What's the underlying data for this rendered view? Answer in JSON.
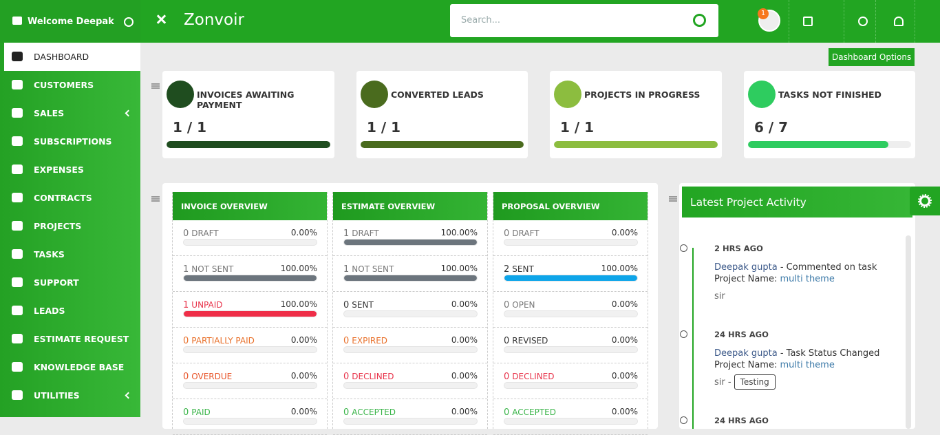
{
  "sidebar": {
    "welcome": "Welcome Deepak",
    "menu": [
      "DASHBOARD",
      "CUSTOMERS",
      "SALES",
      "SUBSCRIPTIONS",
      "EXPENSES",
      "CONTRACTS",
      "PROJECTS",
      "TASKS",
      "SUPPORT",
      "LEADS",
      "ESTIMATE REQUEST",
      "KNOWLEDGE BASE",
      "UTILITIES"
    ]
  },
  "header": {
    "brand": "Zonvoir",
    "search_placeholder": "Search...",
    "notification_count": 1
  },
  "dashboard_options": "Dashboard Options",
  "stats": [
    {
      "title": "INVOICES AWAITING PAYMENT",
      "value": "1 / 1",
      "progress": 100,
      "color": "#1f4d1f"
    },
    {
      "title": "CONVERTED LEADS",
      "value": "1 / 1",
      "progress": 100,
      "color": "#4a6b1e"
    },
    {
      "title": "PROJECTS IN PROGRESS",
      "value": "1 / 1",
      "progress": 100,
      "color": "#8cbd3f"
    },
    {
      "title": "TASKS NOT FINISHED",
      "value": "6 / 7",
      "progress": 86,
      "color": "#2ecc5f"
    }
  ],
  "overviews": [
    {
      "title": "INVOICE OVERVIEW",
      "rows": [
        {
          "count": 0,
          "label": "DRAFT",
          "percent": 0,
          "percent_label": "0.00%",
          "color": "#777777",
          "bar_color": "#6c757d"
        },
        {
          "count": 1,
          "label": "NOT SENT",
          "percent": 100,
          "percent_label": "100.00%",
          "color": "#777777",
          "bar_color": "#6c757d"
        },
        {
          "count": 1,
          "label": "UNPAID",
          "percent": 100,
          "percent_label": "100.00%",
          "color": "#e8334a",
          "bar_color": "#ef2e48"
        },
        {
          "count": 0,
          "label": "PARTIALLY PAID",
          "percent": 0,
          "percent_label": "0.00%",
          "color": "#e8702a",
          "bar_color": "#e8702a"
        },
        {
          "count": 0,
          "label": "OVERDUE",
          "percent": 0,
          "percent_label": "0.00%",
          "color": "#e8552a",
          "bar_color": "#e8552a"
        },
        {
          "count": 0,
          "label": "PAID",
          "percent": 0,
          "percent_label": "0.00%",
          "color": "#3bb54a",
          "bar_color": "#3bb54a"
        }
      ]
    },
    {
      "title": "ESTIMATE OVERVIEW",
      "rows": [
        {
          "count": 1,
          "label": "DRAFT",
          "percent": 100,
          "percent_label": "100.00%",
          "color": "#777777",
          "bar_color": "#6c757d"
        },
        {
          "count": 1,
          "label": "NOT SENT",
          "percent": 100,
          "percent_label": "100.00%",
          "color": "#777777",
          "bar_color": "#6c757d"
        },
        {
          "count": 0,
          "label": "SENT",
          "percent": 0,
          "percent_label": "0.00%",
          "color": "#333333",
          "bar_color": "#333333"
        },
        {
          "count": 0,
          "label": "EXPIRED",
          "percent": 0,
          "percent_label": "0.00%",
          "color": "#e8702a",
          "bar_color": "#e8702a"
        },
        {
          "count": 0,
          "label": "DECLINED",
          "percent": 0,
          "percent_label": "0.00%",
          "color": "#e8334a",
          "bar_color": "#e8334a"
        },
        {
          "count": 0,
          "label": "ACCEPTED",
          "percent": 0,
          "percent_label": "0.00%",
          "color": "#3bb54a",
          "bar_color": "#3bb54a"
        }
      ]
    },
    {
      "title": "PROPOSAL OVERVIEW",
      "rows": [
        {
          "count": 0,
          "label": "DRAFT",
          "percent": 0,
          "percent_label": "0.00%",
          "color": "#777777",
          "bar_color": "#6c757d"
        },
        {
          "count": 2,
          "label": "SENT",
          "percent": 100,
          "percent_label": "100.00%",
          "color": "#333333",
          "bar_color": "#0ea5e9"
        },
        {
          "count": 0,
          "label": "OPEN",
          "percent": 0,
          "percent_label": "0.00%",
          "color": "#777777",
          "bar_color": "#6c757d"
        },
        {
          "count": 0,
          "label": "REVISED",
          "percent": 0,
          "percent_label": "0.00%",
          "color": "#333333",
          "bar_color": "#333333"
        },
        {
          "count": 0,
          "label": "DECLINED",
          "percent": 0,
          "percent_label": "0.00%",
          "color": "#e8334a",
          "bar_color": "#e8334a"
        },
        {
          "count": 0,
          "label": "ACCEPTED",
          "percent": 0,
          "percent_label": "0.00%",
          "color": "#3bb54a",
          "bar_color": "#3bb54a"
        }
      ]
    }
  ],
  "activity": {
    "title": "Latest Project Activity",
    "items": [
      {
        "time": "2 HRS AGO",
        "user": "Deepak gupta",
        "action": "- Commented on task",
        "project_label": "Project Name:",
        "project": "multi theme",
        "note": "sir"
      },
      {
        "time": "24 HRS AGO",
        "user": "Deepak gupta",
        "action": "- Task Status Changed",
        "project_label": "Project Name:",
        "project": "multi theme",
        "note": "sir -",
        "tag": "Testing"
      },
      {
        "time": "24 HRS AGO"
      }
    ]
  }
}
